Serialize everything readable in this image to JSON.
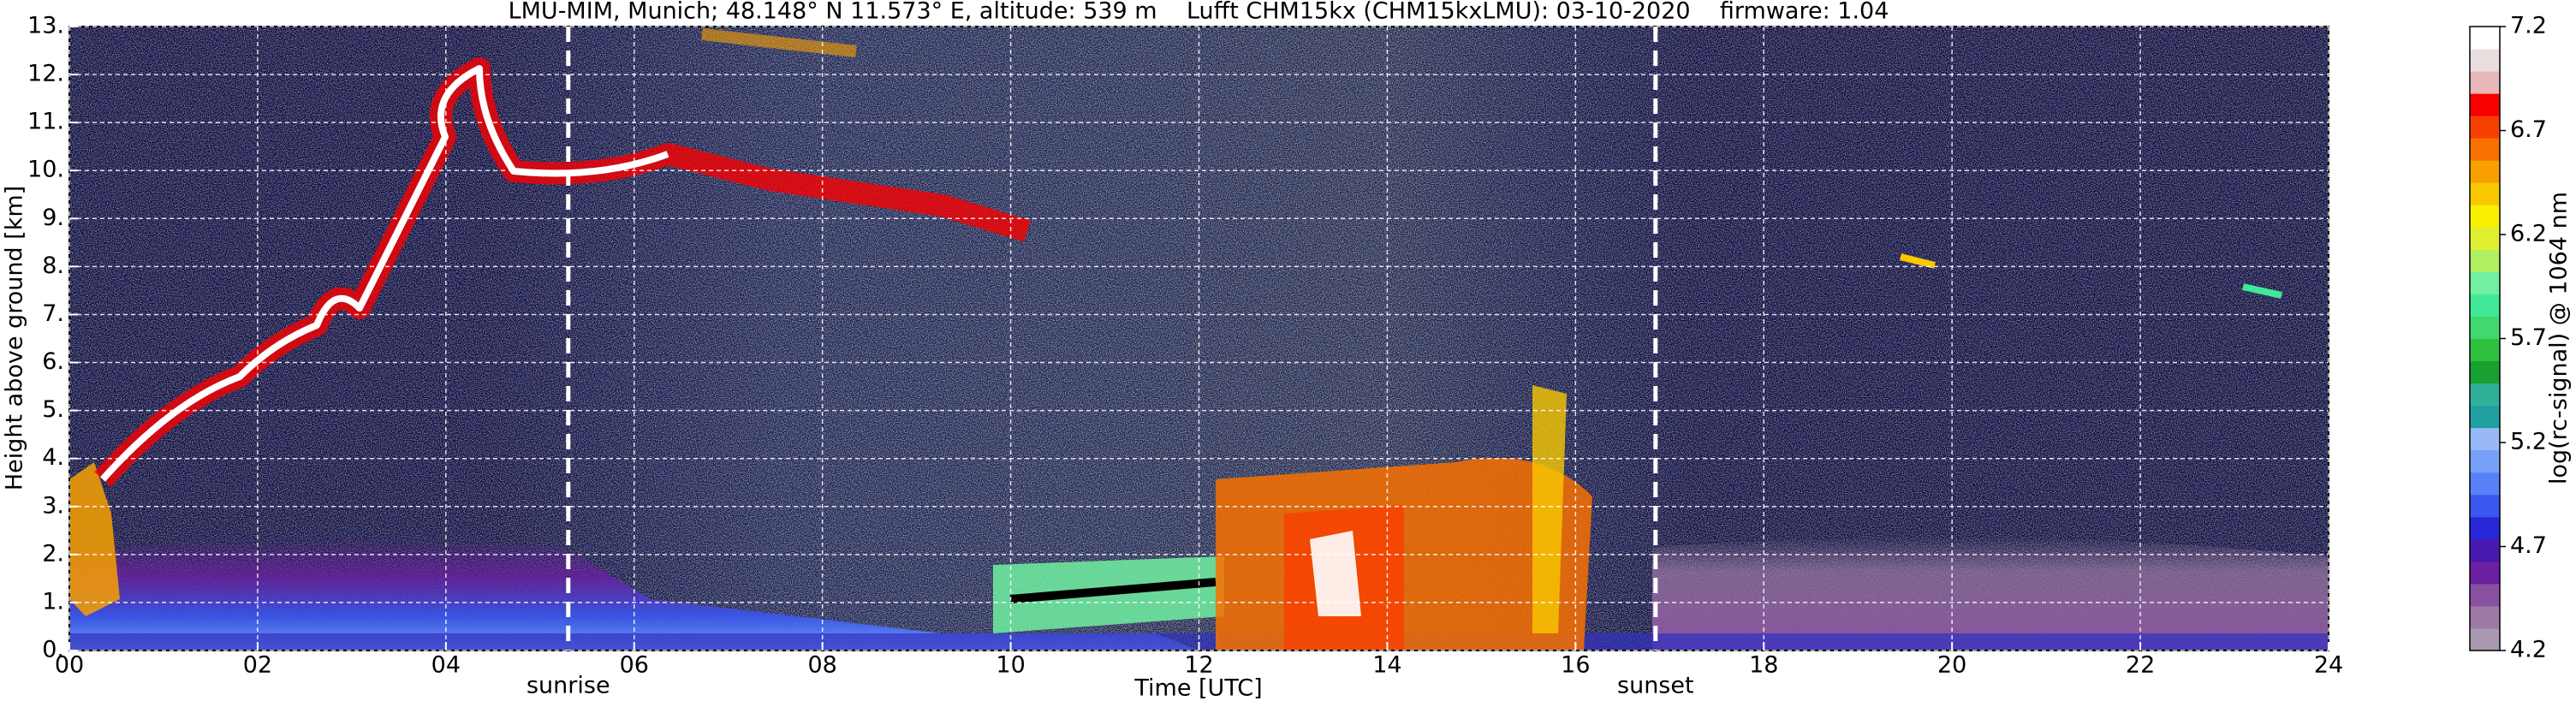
{
  "chart_data": {
    "type": "heatmap",
    "title": "LMU-MIM, Munich; 48.148° N 11.573° E, altitude: 539 m    Lufft CHM15kx (CHM15kxLMU): 03-10-2020    firmware: 1.04",
    "x_label": "Time [UTC]",
    "y_label": "Height above ground [km]",
    "xlim": [
      0,
      24
    ],
    "xticks": [
      {
        "value": 0,
        "label": "00"
      },
      {
        "value": 2,
        "label": "02"
      },
      {
        "value": 4,
        "label": "04"
      },
      {
        "value": 6,
        "label": "06"
      },
      {
        "value": 8,
        "label": "08"
      },
      10,
      12,
      14,
      16,
      18,
      20,
      22,
      24
    ],
    "ylim": [
      0,
      13
    ],
    "yticks": [
      {
        "value": 0,
        "label": "0."
      },
      {
        "value": 1,
        "label": "1."
      },
      {
        "value": 2,
        "label": "2."
      },
      {
        "value": 3,
        "label": "3."
      },
      {
        "value": 4,
        "label": "4."
      },
      {
        "value": 5,
        "label": "5."
      },
      {
        "value": 6,
        "label": "6."
      },
      {
        "value": 7,
        "label": "7."
      },
      {
        "value": 8,
        "label": "8."
      },
      {
        "value": 9,
        "label": "9."
      },
      {
        "value": 10,
        "label": "10."
      },
      {
        "value": 11,
        "label": "11."
      },
      {
        "value": 12,
        "label": "12."
      },
      {
        "value": 13,
        "label": "13."
      }
    ],
    "grid": true,
    "annotations": [
      {
        "label": "sunrise",
        "x": 5.3
      },
      {
        "label": "sunset",
        "x": 16.85
      }
    ],
    "colorbar_label": "log(rc-signal) @ 1064 nm",
    "clim": [
      4.2,
      7.2
    ],
    "cticks": [
      4.2,
      4.7,
      5.2,
      5.7,
      6.2,
      6.7,
      7.2
    ],
    "colormap": [
      "#a898b0",
      "#9c7aa4",
      "#8a50a0",
      "#6a20a0",
      "#4818b0",
      "#2828d8",
      "#3858f0",
      "#5880f8",
      "#78a0f8",
      "#98b8f8",
      "#20a0a0",
      "#30b098",
      "#18a030",
      "#30c040",
      "#40d870",
      "#40e898",
      "#70f0a0",
      "#b0f060",
      "#e0f030",
      "#f8f000",
      "#f8c800",
      "#f8a000",
      "#f87000",
      "#f84000",
      "#f80000",
      "#e8b8b8",
      "#eadede",
      "#ffffff"
    ]
  }
}
